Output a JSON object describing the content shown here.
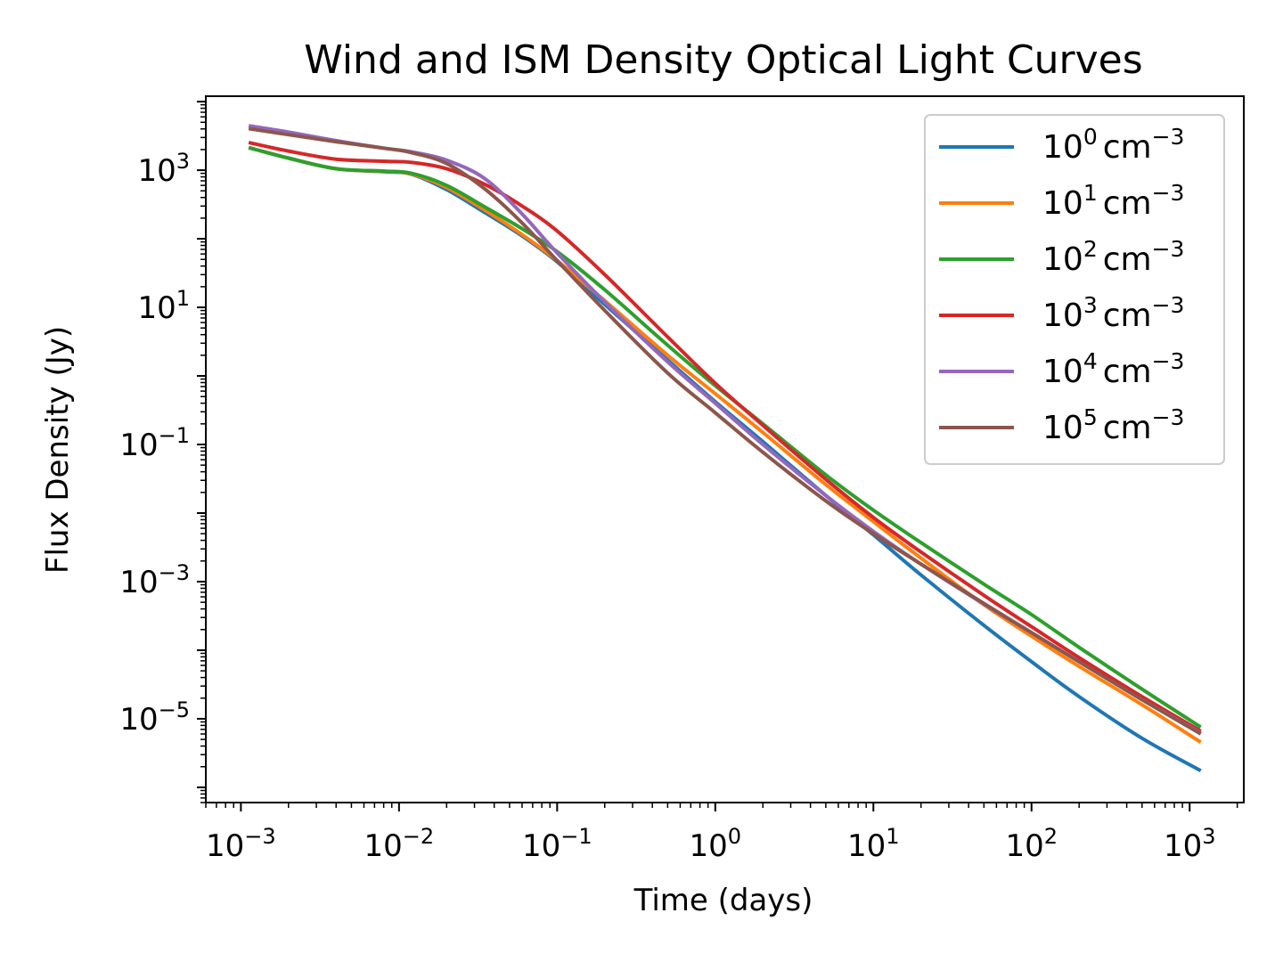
{
  "chart_data": {
    "type": "line",
    "title": "Wind and ISM Density Optical Light Curves",
    "xlabel": "Time (days)",
    "ylabel": "Flux Density (Jy)",
    "xscale": "log",
    "yscale": "log",
    "xlim": [
      0.0006,
      2200
    ],
    "ylim": [
      6e-07,
      12000
    ],
    "xticks": [
      {
        "value": 0.001,
        "base": "10",
        "exp": "−3"
      },
      {
        "value": 0.01,
        "base": "10",
        "exp": "−2"
      },
      {
        "value": 0.1,
        "base": "10",
        "exp": "−1"
      },
      {
        "value": 1,
        "base": "10",
        "exp": "0"
      },
      {
        "value": 10,
        "base": "10",
        "exp": "1"
      },
      {
        "value": 100,
        "base": "10",
        "exp": "2"
      },
      {
        "value": 1000,
        "base": "10",
        "exp": "3"
      }
    ],
    "yticks": [
      {
        "value": 1000,
        "base": "10",
        "exp": "3"
      },
      {
        "value": 10,
        "base": "10",
        "exp": "1"
      },
      {
        "value": 0.1,
        "base": "10",
        "exp": "−1"
      },
      {
        "value": 0.001,
        "base": "10",
        "exp": "−3"
      },
      {
        "value": 1e-05,
        "base": "10",
        "exp": "−5"
      }
    ],
    "grid": false,
    "legend_position": "top-right",
    "series": [
      {
        "name": "10^0 cm^-3",
        "label_base": "10",
        "label_exp": "0",
        "label_unit": "cm",
        "label_unit_exp": "−3",
        "color": "#1f77b4",
        "x": [
          0.00115,
          0.002,
          0.004,
          0.008,
          0.012,
          0.02,
          0.035,
          0.06,
          0.1,
          0.2,
          0.5,
          1,
          2,
          5,
          10,
          20,
          50,
          100,
          200,
          500,
          1150
        ],
        "y": [
          2100,
          1500,
          1050,
          950,
          870,
          520,
          240,
          110,
          46,
          11,
          1.7,
          0.42,
          0.11,
          0.018,
          0.0048,
          0.00125,
          0.00023,
          6.8e-05,
          2.1e-05,
          5.2e-06,
          1.8e-06
        ]
      },
      {
        "name": "10^1 cm^-3",
        "label_base": "10",
        "label_exp": "1",
        "label_unit": "cm",
        "label_unit_exp": "−3",
        "color": "#ff7f0e",
        "x": [
          0.00115,
          0.002,
          0.004,
          0.008,
          0.012,
          0.02,
          0.035,
          0.06,
          0.1,
          0.2,
          0.5,
          1,
          2,
          5,
          10,
          20,
          50,
          100,
          200,
          500,
          1150
        ],
        "y": [
          2100,
          1500,
          1050,
          960,
          880,
          560,
          260,
          115,
          48,
          12.5,
          2.0,
          0.55,
          0.15,
          0.026,
          0.0075,
          0.0022,
          0.00046,
          0.00016,
          5.8e-05,
          1.6e-05,
          4.7e-06
        ]
      },
      {
        "name": "10^2 cm^-3",
        "label_base": "10",
        "label_exp": "2",
        "label_unit": "cm",
        "label_unit_exp": "−3",
        "color": "#2ca02c",
        "x": [
          0.00115,
          0.002,
          0.004,
          0.008,
          0.012,
          0.02,
          0.035,
          0.06,
          0.1,
          0.2,
          0.5,
          1,
          2,
          5,
          10,
          20,
          50,
          100,
          200,
          500,
          1150
        ],
        "y": [
          2100,
          1500,
          1050,
          970,
          900,
          600,
          290,
          140,
          65,
          18,
          2.8,
          0.72,
          0.2,
          0.036,
          0.011,
          0.0037,
          0.00092,
          0.00033,
          0.00011,
          2.7e-05,
          7.8e-06
        ]
      },
      {
        "name": "10^3 cm^-3",
        "label_base": "10",
        "label_exp": "3",
        "label_unit": "cm",
        "label_unit_exp": "−3",
        "color": "#d62728",
        "x": [
          0.00115,
          0.002,
          0.004,
          0.008,
          0.012,
          0.02,
          0.035,
          0.06,
          0.1,
          0.2,
          0.5,
          1,
          2,
          5,
          10,
          20,
          50,
          100,
          200,
          500,
          1150
        ],
        "y": [
          2500,
          1900,
          1450,
          1350,
          1300,
          1050,
          620,
          300,
          130,
          30,
          3.7,
          0.78,
          0.19,
          0.031,
          0.0086,
          0.0027,
          0.00063,
          0.00022,
          7.8e-05,
          2.1e-05,
          6.8e-06
        ]
      },
      {
        "name": "10^4 cm^-3",
        "label_base": "10",
        "label_exp": "4",
        "label_unit": "cm",
        "label_unit_exp": "−3",
        "color": "#9467bd",
        "x": [
          0.00115,
          0.002,
          0.004,
          0.008,
          0.012,
          0.02,
          0.035,
          0.06,
          0.1,
          0.2,
          0.5,
          1,
          2,
          5,
          10,
          20,
          50,
          100,
          200,
          500,
          1150
        ],
        "y": [
          4400,
          3600,
          2700,
          2100,
          1850,
          1400,
          750,
          230,
          62,
          12,
          1.6,
          0.4,
          0.1,
          0.018,
          0.0054,
          0.0018,
          0.00047,
          0.00018,
          6.8e-05,
          1.9e-05,
          6.4e-06
        ]
      },
      {
        "name": "10^5 cm^-3",
        "label_base": "10",
        "label_exp": "5",
        "label_unit": "cm",
        "label_unit_exp": "−3",
        "color": "#8c564b",
        "x": [
          0.00115,
          0.002,
          0.004,
          0.008,
          0.012,
          0.02,
          0.035,
          0.06,
          0.1,
          0.2,
          0.5,
          1,
          2,
          5,
          10,
          20,
          50,
          100,
          200,
          500,
          1150
        ],
        "y": [
          4000,
          3300,
          2600,
          2100,
          1800,
          1250,
          530,
          170,
          48,
          9,
          1.1,
          0.29,
          0.077,
          0.015,
          0.005,
          0.0018,
          0.00048,
          0.00018,
          6.8e-05,
          1.9e-05,
          6.2e-06
        ]
      }
    ]
  }
}
